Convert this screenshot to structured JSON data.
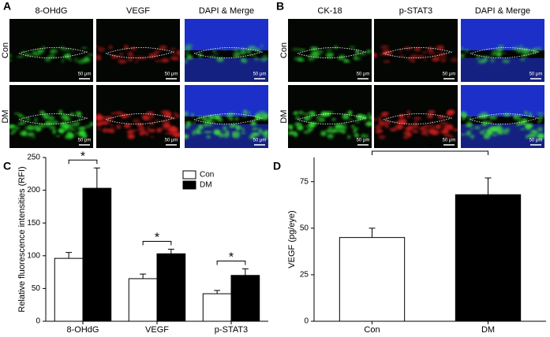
{
  "panels": [
    {
      "label": "A",
      "columns": [
        "8-OHdG",
        "VEGF",
        "DAPI & Merge"
      ],
      "rows": [
        "Con",
        "DM"
      ],
      "scale_bars": [
        "50 μm",
        "50 μm",
        "50 μm",
        "50 μm",
        "50 μm",
        "50 μm"
      ]
    },
    {
      "label": "B",
      "columns": [
        "CK-18",
        "p-STAT3",
        "DAPI & Merge"
      ],
      "rows": [
        "Con",
        "DM"
      ],
      "scale_bars": [
        "50 μm",
        "50 μm",
        "50 μm",
        "50 μm",
        "50 μm",
        "50 μm"
      ]
    }
  ],
  "chart_data": [
    {
      "type": "bar",
      "label": "C",
      "y_label": "Relative fluorescence intensities (RFI)",
      "categories": [
        "8-OHdG",
        "VEGF",
        "p-STAT3"
      ],
      "series": [
        {
          "name": "Con",
          "color": "#ffffff",
          "values": [
            96,
            65,
            42
          ],
          "errors": [
            9,
            7,
            5
          ]
        },
        {
          "name": "DM",
          "color": "#000000",
          "values": [
            203,
            103,
            70
          ],
          "errors": [
            31,
            7,
            10
          ]
        }
      ],
      "ylim": [
        0,
        250
      ],
      "yticks": [
        0,
        50,
        100,
        150,
        200,
        250
      ],
      "legend": "upper right",
      "annotations": [
        "*",
        "*",
        "*"
      ]
    },
    {
      "type": "bar",
      "label": "D",
      "y_label": "VEGF (pg/eye)",
      "categories": [
        "Con",
        "DM"
      ],
      "values": [
        45,
        68
      ],
      "errors": [
        5,
        9
      ],
      "colors": [
        "#ffffff",
        "#000000"
      ],
      "ylim": [
        0,
        88
      ],
      "yticks": [
        0,
        25,
        50,
        75
      ],
      "annotations": [
        "*"
      ]
    }
  ]
}
